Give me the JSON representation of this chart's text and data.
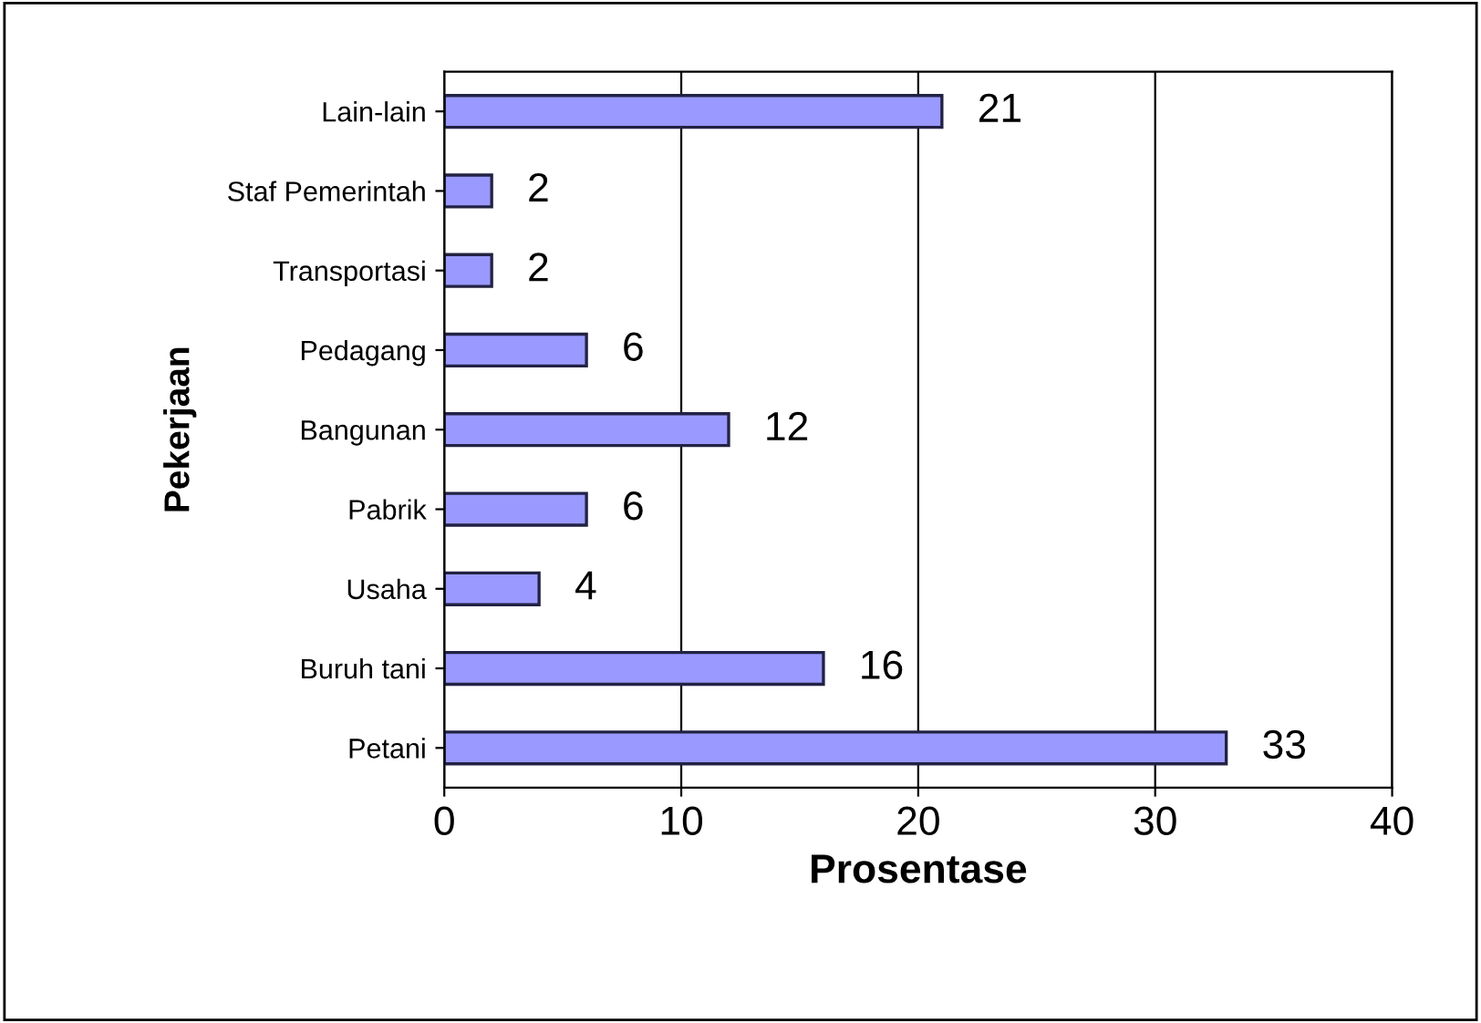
{
  "chart_data": {
    "type": "bar",
    "orientation": "horizontal",
    "xlabel": "Prosentase",
    "ylabel": "Pekerjaan",
    "categories": [
      "Lain-lain",
      "Staf Pemerintah",
      "Transportasi",
      "Pedagang",
      "Bangunan",
      "Pabrik",
      "Usaha",
      "Buruh tani",
      "Petani"
    ],
    "values": [
      21,
      2,
      2,
      6,
      12,
      6,
      4,
      16,
      33
    ],
    "color": "#9999ff",
    "xlim": [
      0,
      40
    ],
    "xticks": [
      0,
      10,
      20,
      30,
      40
    ],
    "grid": "x",
    "data_labels": true,
    "legend": false
  }
}
